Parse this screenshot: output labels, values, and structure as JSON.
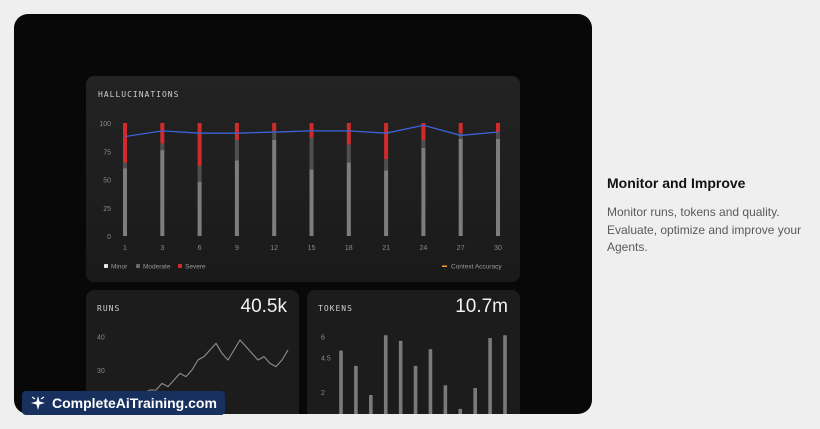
{
  "hallucinations": {
    "title": "HALLUCINATIONS",
    "legend": {
      "minor": "Minor",
      "moderate": "Moderate",
      "severe": "Severe",
      "accuracy": "Context Accuracy"
    },
    "colors": {
      "minor": "#7d7d7d",
      "moderate": "#4f4f4f",
      "severe": "#d02a2a",
      "accuracy": "#3b63d8",
      "accuracy_legend": "#e8a23a"
    }
  },
  "runs": {
    "title": "RUNS",
    "value": "40.5k"
  },
  "tokens": {
    "title": "TOKENS",
    "value": "10.7m"
  },
  "side": {
    "title": "Monitor and Improve",
    "description": "Monitor runs, tokens and quality. Evaluate, optimize and improve your Agents."
  },
  "watermark": {
    "text": "CompleteAiTraining.com",
    "icon": "sparkle-logo-icon"
  },
  "chart_data": [
    {
      "type": "bar",
      "title": "HALLUCINATIONS",
      "x": [
        1,
        3,
        6,
        9,
        12,
        15,
        18,
        21,
        24,
        27,
        30
      ],
      "categories": [
        "1",
        "3",
        "6",
        "9",
        "12",
        "15",
        "18",
        "21",
        "24",
        "27",
        "30"
      ],
      "yticks": [
        0,
        25,
        50,
        75,
        100
      ],
      "ylim": [
        0,
        100
      ],
      "series": [
        {
          "name": "Minor",
          "values": [
            60,
            76,
            48,
            67,
            85,
            59,
            65,
            58,
            78,
            86,
            86
          ]
        },
        {
          "name": "Moderate",
          "values": [
            5,
            6,
            14,
            18,
            8,
            28,
            16,
            10,
            7,
            5,
            6
          ]
        },
        {
          "name": "Severe",
          "values": [
            35,
            18,
            38,
            15,
            7,
            13,
            19,
            32,
            15,
            9,
            8
          ]
        },
        {
          "name": "Context Accuracy",
          "type": "line",
          "values": [
            88,
            93,
            91,
            91,
            92,
            93,
            93,
            91,
            98,
            89,
            92
          ]
        }
      ],
      "legend_position": "bottom"
    },
    {
      "type": "line",
      "title": "RUNS",
      "yticks": [
        30,
        40
      ],
      "ylim": [
        15,
        45
      ],
      "values": [
        18,
        20,
        21,
        23,
        24,
        24,
        26,
        25,
        27,
        29,
        28,
        30,
        33,
        34,
        36,
        38,
        35,
        33,
        36,
        39,
        37,
        35,
        33,
        34,
        32,
        31,
        33,
        36
      ]
    },
    {
      "type": "bar",
      "title": "TOKENS",
      "yticks": [
        2,
        4.5,
        6
      ],
      "ylim": [
        0,
        7.2
      ],
      "values": [
        5,
        3.9,
        1.8,
        6.1,
        5.7,
        3.9,
        5.1,
        2.5,
        0.8,
        2.3,
        5.9,
        6.1
      ]
    }
  ]
}
